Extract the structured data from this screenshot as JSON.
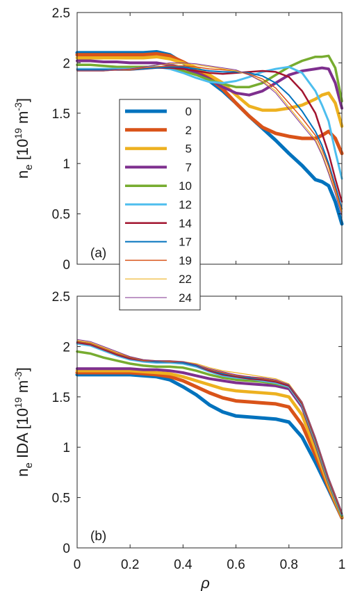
{
  "chart_data": [
    {
      "type": "line",
      "panel_label": "(a)",
      "ylabel_main": "n",
      "ylabel_sub": "e",
      "ylabel_unit_open": " [10",
      "ylabel_unit_exp": "19",
      "ylabel_unit_mid": " m",
      "ylabel_unit_exp2": "-3",
      "ylabel_unit_close": "]",
      "xlim": [
        0,
        1
      ],
      "ylim": [
        0,
        2.5
      ],
      "x_ticks": [],
      "y_ticks": [
        "0",
        "0.5",
        "1",
        "1.5",
        "2",
        "2.5"
      ],
      "y_tick_values": [
        0,
        0.5,
        1,
        1.5,
        2,
        2.5
      ],
      "x": [
        0,
        0.05,
        0.1,
        0.15,
        0.2,
        0.25,
        0.3,
        0.35,
        0.4,
        0.45,
        0.5,
        0.55,
        0.6,
        0.65,
        0.7,
        0.75,
        0.8,
        0.85,
        0.9,
        0.925,
        0.95,
        0.975,
        1.0
      ],
      "series": [
        {
          "name": "0",
          "color": "#0072BD",
          "width": 5,
          "values": [
            2.1,
            2.1,
            2.1,
            2.1,
            2.1,
            2.1,
            2.11,
            2.08,
            2.0,
            1.92,
            1.82,
            1.72,
            1.6,
            1.47,
            1.35,
            1.23,
            1.1,
            0.98,
            0.84,
            0.82,
            0.78,
            0.62,
            0.4
          ]
        },
        {
          "name": "2",
          "color": "#D95319",
          "width": 5,
          "values": [
            2.08,
            2.08,
            2.08,
            2.08,
            2.08,
            2.08,
            2.09,
            2.07,
            2.01,
            1.94,
            1.85,
            1.74,
            1.6,
            1.47,
            1.36,
            1.3,
            1.27,
            1.25,
            1.25,
            1.28,
            1.32,
            1.25,
            1.1
          ]
        },
        {
          "name": "5",
          "color": "#EDB120",
          "width": 4.5,
          "values": [
            2.05,
            2.05,
            2.05,
            2.05,
            2.05,
            2.05,
            2.06,
            2.04,
            2.0,
            1.95,
            1.88,
            1.8,
            1.68,
            1.57,
            1.53,
            1.53,
            1.55,
            1.58,
            1.64,
            1.68,
            1.7,
            1.6,
            1.37
          ]
        },
        {
          "name": "7",
          "color": "#7E2F8E",
          "width": 4,
          "values": [
            2.02,
            2.02,
            2.01,
            2.01,
            2.0,
            2.0,
            2.0,
            1.98,
            1.95,
            1.9,
            1.84,
            1.76,
            1.7,
            1.68,
            1.72,
            1.8,
            1.88,
            1.92,
            1.94,
            1.95,
            1.94,
            1.8,
            1.55
          ]
        },
        {
          "name": "10",
          "color": "#77AC30",
          "width": 3.5,
          "values": [
            1.98,
            1.98,
            1.97,
            1.96,
            1.96,
            1.96,
            1.96,
            1.95,
            1.92,
            1.88,
            1.83,
            1.79,
            1.76,
            1.76,
            1.8,
            1.88,
            1.96,
            2.02,
            2.06,
            2.06,
            2.07,
            1.95,
            1.62
          ]
        },
        {
          "name": "12",
          "color": "#4DBEEE",
          "width": 3,
          "values": [
            1.94,
            1.94,
            1.94,
            1.94,
            1.94,
            1.95,
            1.96,
            1.94,
            1.9,
            1.85,
            1.81,
            1.8,
            1.82,
            1.86,
            1.91,
            1.94,
            1.96,
            1.9,
            1.72,
            1.58,
            1.42,
            1.12,
            0.85
          ]
        },
        {
          "name": "14",
          "color": "#A2142F",
          "width": 2.5,
          "values": [
            1.93,
            1.93,
            1.93,
            1.93,
            1.93,
            1.94,
            1.95,
            1.95,
            1.94,
            1.92,
            1.9,
            1.89,
            1.9,
            1.91,
            1.92,
            1.91,
            1.86,
            1.72,
            1.5,
            1.3,
            1.1,
            0.85,
            0.62
          ]
        },
        {
          "name": "17",
          "color": "#0072BD",
          "width": 2,
          "values": [
            1.93,
            1.93,
            1.93,
            1.93,
            1.93,
            1.94,
            1.95,
            1.96,
            1.96,
            1.94,
            1.92,
            1.91,
            1.91,
            1.9,
            1.87,
            1.8,
            1.68,
            1.52,
            1.32,
            1.18,
            1.0,
            0.78,
            0.55
          ]
        },
        {
          "name": "19",
          "color": "#D95319",
          "width": 1.5,
          "values": [
            1.92,
            1.92,
            1.92,
            1.93,
            1.93,
            1.95,
            1.96,
            1.97,
            1.97,
            1.96,
            1.94,
            1.93,
            1.92,
            1.89,
            1.84,
            1.75,
            1.6,
            1.45,
            1.28,
            1.14,
            0.97,
            0.75,
            0.52
          ]
        },
        {
          "name": "22",
          "color": "#EDB120",
          "width": 1.2,
          "values": [
            1.92,
            1.92,
            1.92,
            1.93,
            1.94,
            1.96,
            1.98,
            1.99,
            1.99,
            1.98,
            1.96,
            1.94,
            1.92,
            1.88,
            1.82,
            1.72,
            1.56,
            1.4,
            1.24,
            1.1,
            0.92,
            0.72,
            0.5
          ]
        },
        {
          "name": "24",
          "color": "#7E2F8E",
          "width": 1,
          "values": [
            1.92,
            1.92,
            1.92,
            1.93,
            1.94,
            1.96,
            1.98,
            2.0,
            2.0,
            1.99,
            1.97,
            1.95,
            1.93,
            1.88,
            1.81,
            1.7,
            1.54,
            1.38,
            1.22,
            1.08,
            0.9,
            0.7,
            0.48
          ]
        }
      ]
    },
    {
      "type": "line",
      "panel_label": "(b)",
      "ylabel_main": "n",
      "ylabel_sub": "e",
      "ylabel_unit_open": " IDA [10",
      "ylabel_unit_exp": "19",
      "ylabel_unit_mid": " m",
      "ylabel_unit_exp2": "-3",
      "ylabel_unit_close": "]",
      "xlim": [
        0,
        1
      ],
      "ylim": [
        0,
        2.5
      ],
      "x_ticks": [
        "0",
        "0.2",
        "0.4",
        "0.6",
        "0.8",
        "1"
      ],
      "x_tick_values": [
        0,
        0.2,
        0.4,
        0.6,
        0.8,
        1
      ],
      "y_ticks": [
        "0",
        "0.5",
        "1",
        "1.5",
        "2",
        "2.5"
      ],
      "y_tick_values": [
        0,
        0.5,
        1,
        1.5,
        2,
        2.5
      ],
      "xlabel_main": "ρ",
      "x": [
        0,
        0.05,
        0.1,
        0.15,
        0.2,
        0.25,
        0.3,
        0.35,
        0.4,
        0.45,
        0.5,
        0.55,
        0.6,
        0.65,
        0.7,
        0.75,
        0.8,
        0.85,
        0.9,
        0.95,
        1.0
      ],
      "series": [
        {
          "name": "0",
          "color": "#0072BD",
          "width": 5,
          "values": [
            1.72,
            1.72,
            1.72,
            1.72,
            1.72,
            1.71,
            1.7,
            1.67,
            1.6,
            1.52,
            1.42,
            1.35,
            1.31,
            1.3,
            1.29,
            1.28,
            1.25,
            1.1,
            0.85,
            0.58,
            0.3
          ]
        },
        {
          "name": "2",
          "color": "#D95319",
          "width": 5,
          "values": [
            1.74,
            1.74,
            1.74,
            1.74,
            1.74,
            1.73,
            1.72,
            1.7,
            1.66,
            1.6,
            1.54,
            1.49,
            1.46,
            1.45,
            1.44,
            1.43,
            1.4,
            1.22,
            0.92,
            0.6,
            0.3
          ]
        },
        {
          "name": "5",
          "color": "#EDB120",
          "width": 4.5,
          "values": [
            1.76,
            1.76,
            1.76,
            1.76,
            1.76,
            1.75,
            1.74,
            1.73,
            1.7,
            1.66,
            1.62,
            1.58,
            1.56,
            1.55,
            1.54,
            1.53,
            1.5,
            1.32,
            0.98,
            0.62,
            0.31
          ]
        },
        {
          "name": "7",
          "color": "#7E2F8E",
          "width": 4,
          "values": [
            1.78,
            1.78,
            1.78,
            1.78,
            1.78,
            1.77,
            1.77,
            1.76,
            1.74,
            1.71,
            1.68,
            1.66,
            1.64,
            1.63,
            1.62,
            1.61,
            1.58,
            1.4,
            1.04,
            0.65,
            0.32
          ]
        },
        {
          "name": "10",
          "color": "#77AC30",
          "width": 3.5,
          "values": [
            1.95,
            1.93,
            1.89,
            1.86,
            1.83,
            1.81,
            1.8,
            1.8,
            1.79,
            1.76,
            1.72,
            1.69,
            1.67,
            1.66,
            1.65,
            1.63,
            1.6,
            1.42,
            1.06,
            0.66,
            0.32
          ]
        },
        {
          "name": "12",
          "color": "#4DBEEE",
          "width": 3,
          "values": [
            2.03,
            2.01,
            1.96,
            1.91,
            1.87,
            1.85,
            1.84,
            1.84,
            1.83,
            1.8,
            1.75,
            1.71,
            1.69,
            1.68,
            1.66,
            1.64,
            1.6,
            1.42,
            1.07,
            0.67,
            0.33
          ]
        },
        {
          "name": "14",
          "color": "#A2142F",
          "width": 2.5,
          "values": [
            2.04,
            2.02,
            1.97,
            1.92,
            1.88,
            1.86,
            1.85,
            1.85,
            1.84,
            1.81,
            1.76,
            1.72,
            1.7,
            1.68,
            1.67,
            1.65,
            1.61,
            1.43,
            1.08,
            0.68,
            0.34
          ]
        },
        {
          "name": "17",
          "color": "#0072BD",
          "width": 2,
          "values": [
            2.05,
            2.03,
            1.98,
            1.93,
            1.89,
            1.86,
            1.85,
            1.85,
            1.84,
            1.81,
            1.77,
            1.73,
            1.71,
            1.69,
            1.68,
            1.66,
            1.62,
            1.44,
            1.09,
            0.69,
            0.35
          ]
        },
        {
          "name": "19",
          "color": "#D95319",
          "width": 1.5,
          "values": [
            2.05,
            2.03,
            1.98,
            1.93,
            1.89,
            1.86,
            1.86,
            1.85,
            1.85,
            1.82,
            1.77,
            1.74,
            1.71,
            1.7,
            1.68,
            1.66,
            1.62,
            1.44,
            1.09,
            0.69,
            0.35
          ]
        },
        {
          "name": "22",
          "color": "#EDB120",
          "width": 1.2,
          "values": [
            2.06,
            2.04,
            1.99,
            1.94,
            1.9,
            1.87,
            1.86,
            1.86,
            1.85,
            1.83,
            1.79,
            1.76,
            1.74,
            1.72,
            1.7,
            1.68,
            1.63,
            1.45,
            1.1,
            0.7,
            0.36
          ]
        },
        {
          "name": "24",
          "color": "#7E2F8E",
          "width": 1,
          "values": [
            2.07,
            2.05,
            2.0,
            1.95,
            1.9,
            1.87,
            1.86,
            1.86,
            1.85,
            1.82,
            1.78,
            1.75,
            1.72,
            1.7,
            1.69,
            1.67,
            1.62,
            1.45,
            1.1,
            0.7,
            0.36
          ]
        }
      ]
    }
  ]
}
